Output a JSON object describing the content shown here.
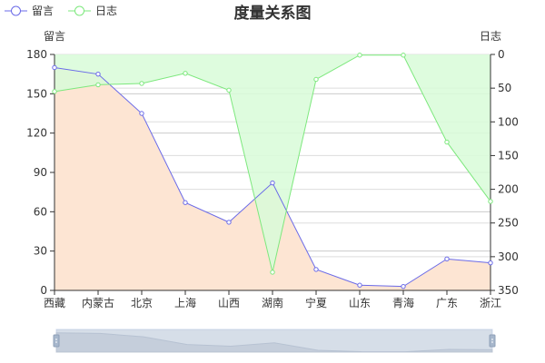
{
  "chart_data": {
    "type": "line",
    "title": "度量关系图",
    "categories": [
      "西藏",
      "内蒙古",
      "北京",
      "上海",
      "山西",
      "湖南",
      "宁夏",
      "山东",
      "青海",
      "广东",
      "浙江"
    ],
    "series": [
      {
        "name": "留言",
        "axis": "left",
        "color": "#6b6be8",
        "fill": "#fde5d3",
        "values": [
          170,
          165,
          135,
          67,
          52,
          82,
          16,
          4,
          3,
          24,
          21
        ]
      },
      {
        "name": "日志",
        "axis": "right",
        "inverse": true,
        "color": "#7de87d",
        "fill": "#d8fbd8",
        "values": [
          55,
          45,
          43,
          28,
          53,
          323,
          37,
          1,
          1,
          130,
          218
        ]
      }
    ],
    "y_left": {
      "label": "留言",
      "min": 0,
      "max": 180,
      "ticks": [
        0,
        30,
        60,
        90,
        120,
        150,
        180
      ]
    },
    "y_right": {
      "label": "日志",
      "min": 0,
      "max": 350,
      "inverse": true,
      "ticks": [
        0,
        50,
        100,
        150,
        200,
        250,
        300,
        350
      ]
    },
    "grid": true,
    "legend_position": "top-left",
    "data_zoom": {
      "present": true,
      "start": 0,
      "end": 100
    }
  }
}
